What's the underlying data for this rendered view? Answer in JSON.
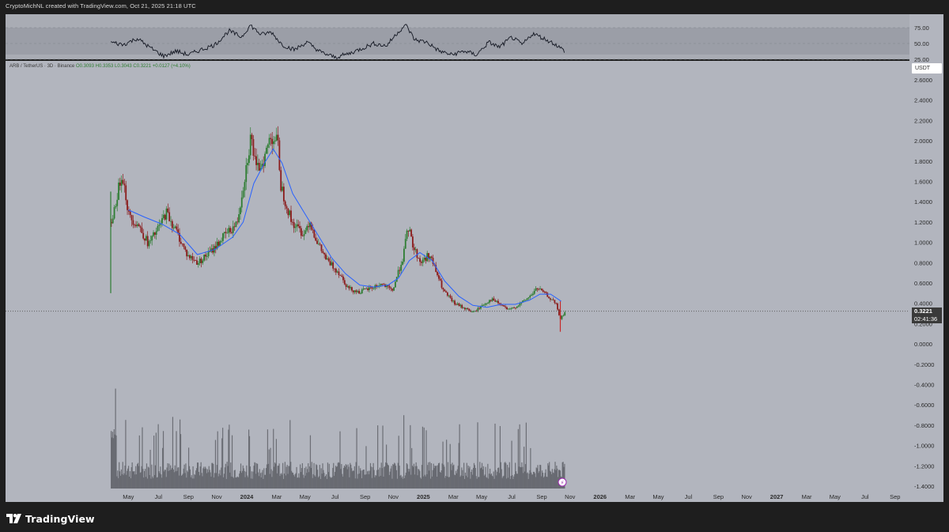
{
  "header": {
    "attribution": "CryptoMichNL created with TradingView.com, Oct 21, 2025 21:18 UTC"
  },
  "symbol": {
    "name": "ARB / TetherUS · 3D · Binance",
    "open": "O0.3093",
    "high": "H0.3353",
    "low": "L0.3043",
    "close": "C0.3221",
    "change": "+0.0127 (+4.10%)"
  },
  "currency_badge": "USDT",
  "last_price": {
    "value": "0.3221",
    "countdown": "02:41:36"
  },
  "brand": {
    "name": "TradingView"
  },
  "colors": {
    "pane_bg": "#b2b5be",
    "up_candle": "#2e7d32",
    "down_candle": "#8b1c1c",
    "ma_line": "#2962ff",
    "rsi_line": "#131722",
    "volume_bar": "#5f6168"
  },
  "chart_data": {
    "type": "candlestick",
    "y_axis": {
      "ticks": [
        "2.6000",
        "2.4000",
        "2.2000",
        "2.0000",
        "1.8000",
        "1.6000",
        "1.4000",
        "1.2000",
        "1.0000",
        "0.8000",
        "0.6000",
        "0.4000",
        "0.2000",
        "0.0000",
        "-0.2000",
        "-0.4000",
        "-0.6000",
        "-0.8000",
        "-1.0000",
        "-1.2000",
        "-1.4000"
      ],
      "ylim": [
        -1.4,
        2.6
      ]
    },
    "rsi_axis": {
      "ticks": [
        "75.00",
        "50.00",
        "25.00"
      ],
      "ylim": [
        25,
        80
      ]
    },
    "x_axis": {
      "ticks": [
        {
          "label": "May",
          "t": 2023.33,
          "bold": false
        },
        {
          "label": "Jul",
          "t": 2023.5,
          "bold": false
        },
        {
          "label": "Sep",
          "t": 2023.67,
          "bold": false
        },
        {
          "label": "Nov",
          "t": 2023.83,
          "bold": false
        },
        {
          "label": "2024",
          "t": 2024.0,
          "bold": true
        },
        {
          "label": "Mar",
          "t": 2024.17,
          "bold": false
        },
        {
          "label": "May",
          "t": 2024.33,
          "bold": false
        },
        {
          "label": "Jul",
          "t": 2024.5,
          "bold": false
        },
        {
          "label": "Sep",
          "t": 2024.67,
          "bold": false
        },
        {
          "label": "Nov",
          "t": 2024.83,
          "bold": false
        },
        {
          "label": "2025",
          "t": 2025.0,
          "bold": true
        },
        {
          "label": "Mar",
          "t": 2025.17,
          "bold": false
        },
        {
          "label": "May",
          "t": 2025.33,
          "bold": false
        },
        {
          "label": "Jul",
          "t": 2025.5,
          "bold": false
        },
        {
          "label": "Sep",
          "t": 2025.67,
          "bold": false
        },
        {
          "label": "Nov",
          "t": 2025.83,
          "bold": false
        },
        {
          "label": "2026",
          "t": 2026.0,
          "bold": true
        },
        {
          "label": "Mar",
          "t": 2026.17,
          "bold": false
        },
        {
          "label": "May",
          "t": 2026.33,
          "bold": false
        },
        {
          "label": "Jul",
          "t": 2026.5,
          "bold": false
        },
        {
          "label": "Sep",
          "t": 2026.67,
          "bold": false
        },
        {
          "label": "Nov",
          "t": 2026.83,
          "bold": false
        },
        {
          "label": "2027",
          "t": 2027.0,
          "bold": true
        },
        {
          "label": "Mar",
          "t": 2027.17,
          "bold": false
        },
        {
          "label": "May",
          "t": 2027.33,
          "bold": false
        },
        {
          "label": "Jul",
          "t": 2027.5,
          "bold": false
        },
        {
          "label": "Sep",
          "t": 2027.67,
          "bold": false
        }
      ],
      "xlim": [
        2023.0,
        2027.8
      ]
    },
    "price_path": [
      {
        "t": 2023.23,
        "v": 1.2
      },
      {
        "t": 2023.27,
        "v": 1.52
      },
      {
        "t": 2023.29,
        "v": 1.7
      },
      {
        "t": 2023.33,
        "v": 1.25
      },
      {
        "t": 2023.38,
        "v": 1.18
      },
      {
        "t": 2023.44,
        "v": 0.98
      },
      {
        "t": 2023.5,
        "v": 1.15
      },
      {
        "t": 2023.54,
        "v": 1.3
      },
      {
        "t": 2023.6,
        "v": 1.1
      },
      {
        "t": 2023.66,
        "v": 0.87
      },
      {
        "t": 2023.72,
        "v": 0.8
      },
      {
        "t": 2023.8,
        "v": 0.92
      },
      {
        "t": 2023.86,
        "v": 1.05
      },
      {
        "t": 2023.94,
        "v": 1.18
      },
      {
        "t": 2023.98,
        "v": 1.6
      },
      {
        "t": 2024.02,
        "v": 2.05
      },
      {
        "t": 2024.05,
        "v": 1.7
      },
      {
        "t": 2024.1,
        "v": 1.85
      },
      {
        "t": 2024.13,
        "v": 2.05
      },
      {
        "t": 2024.17,
        "v": 2.0
      },
      {
        "t": 2024.19,
        "v": 1.55
      },
      {
        "t": 2024.25,
        "v": 1.2
      },
      {
        "t": 2024.32,
        "v": 1.08
      },
      {
        "t": 2024.35,
        "v": 1.22
      },
      {
        "t": 2024.4,
        "v": 0.98
      },
      {
        "t": 2024.45,
        "v": 0.82
      },
      {
        "t": 2024.52,
        "v": 0.7
      },
      {
        "t": 2024.57,
        "v": 0.55
      },
      {
        "t": 2024.63,
        "v": 0.51
      },
      {
        "t": 2024.7,
        "v": 0.55
      },
      {
        "t": 2024.76,
        "v": 0.59
      },
      {
        "t": 2024.82,
        "v": 0.52
      },
      {
        "t": 2024.88,
        "v": 0.85
      },
      {
        "t": 2024.91,
        "v": 1.15
      },
      {
        "t": 2024.94,
        "v": 0.95
      },
      {
        "t": 2024.98,
        "v": 0.8
      },
      {
        "t": 2025.03,
        "v": 0.88
      },
      {
        "t": 2025.07,
        "v": 0.7
      },
      {
        "t": 2025.11,
        "v": 0.52
      },
      {
        "t": 2025.17,
        "v": 0.4
      },
      {
        "t": 2025.22,
        "v": 0.36
      },
      {
        "t": 2025.28,
        "v": 0.31
      },
      {
        "t": 2025.33,
        "v": 0.38
      },
      {
        "t": 2025.38,
        "v": 0.44
      },
      {
        "t": 2025.44,
        "v": 0.38
      },
      {
        "t": 2025.48,
        "v": 0.33
      },
      {
        "t": 2025.55,
        "v": 0.4
      },
      {
        "t": 2025.6,
        "v": 0.47
      },
      {
        "t": 2025.64,
        "v": 0.55
      },
      {
        "t": 2025.68,
        "v": 0.5
      },
      {
        "t": 2025.72,
        "v": 0.44
      },
      {
        "t": 2025.75,
        "v": 0.38
      },
      {
        "t": 2025.77,
        "v": 0.24
      },
      {
        "t": 2025.8,
        "v": 0.32
      }
    ],
    "ma_path": [
      {
        "t": 2023.33,
        "v": 1.32
      },
      {
        "t": 2023.42,
        "v": 1.25
      },
      {
        "t": 2023.52,
        "v": 1.18
      },
      {
        "t": 2023.62,
        "v": 1.08
      },
      {
        "t": 2023.72,
        "v": 0.88
      },
      {
        "t": 2023.82,
        "v": 0.93
      },
      {
        "t": 2023.92,
        "v": 1.05
      },
      {
        "t": 2023.98,
        "v": 1.2
      },
      {
        "t": 2024.04,
        "v": 1.58
      },
      {
        "t": 2024.1,
        "v": 1.78
      },
      {
        "t": 2024.15,
        "v": 1.92
      },
      {
        "t": 2024.2,
        "v": 1.78
      },
      {
        "t": 2024.26,
        "v": 1.48
      },
      {
        "t": 2024.33,
        "v": 1.28
      },
      {
        "t": 2024.4,
        "v": 1.08
      },
      {
        "t": 2024.48,
        "v": 0.85
      },
      {
        "t": 2024.56,
        "v": 0.69
      },
      {
        "t": 2024.64,
        "v": 0.58
      },
      {
        "t": 2024.72,
        "v": 0.56
      },
      {
        "t": 2024.8,
        "v": 0.58
      },
      {
        "t": 2024.86,
        "v": 0.65
      },
      {
        "t": 2024.92,
        "v": 0.82
      },
      {
        "t": 2024.98,
        "v": 0.9
      },
      {
        "t": 2025.05,
        "v": 0.82
      },
      {
        "t": 2025.12,
        "v": 0.62
      },
      {
        "t": 2025.2,
        "v": 0.47
      },
      {
        "t": 2025.28,
        "v": 0.38
      },
      {
        "t": 2025.36,
        "v": 0.36
      },
      {
        "t": 2025.44,
        "v": 0.39
      },
      {
        "t": 2025.52,
        "v": 0.39
      },
      {
        "t": 2025.6,
        "v": 0.43
      },
      {
        "t": 2025.66,
        "v": 0.49
      },
      {
        "t": 2025.72,
        "v": 0.49
      },
      {
        "t": 2025.78,
        "v": 0.42
      }
    ],
    "rsi_path": [
      {
        "t": 2023.23,
        "v": 52
      },
      {
        "t": 2023.3,
        "v": 48
      },
      {
        "t": 2023.38,
        "v": 58
      },
      {
        "t": 2023.46,
        "v": 42
      },
      {
        "t": 2023.53,
        "v": 30
      },
      {
        "t": 2023.6,
        "v": 38
      },
      {
        "t": 2023.67,
        "v": 32
      },
      {
        "t": 2023.74,
        "v": 40
      },
      {
        "t": 2023.82,
        "v": 48
      },
      {
        "t": 2023.9,
        "v": 70
      },
      {
        "t": 2023.97,
        "v": 60
      },
      {
        "t": 2024.02,
        "v": 79
      },
      {
        "t": 2024.08,
        "v": 64
      },
      {
        "t": 2024.14,
        "v": 68
      },
      {
        "t": 2024.2,
        "v": 48
      },
      {
        "t": 2024.27,
        "v": 40
      },
      {
        "t": 2024.34,
        "v": 52
      },
      {
        "t": 2024.42,
        "v": 36
      },
      {
        "t": 2024.5,
        "v": 28
      },
      {
        "t": 2024.58,
        "v": 34
      },
      {
        "t": 2024.65,
        "v": 42
      },
      {
        "t": 2024.72,
        "v": 50
      },
      {
        "t": 2024.79,
        "v": 46
      },
      {
        "t": 2024.85,
        "v": 66
      },
      {
        "t": 2024.9,
        "v": 80
      },
      {
        "t": 2024.95,
        "v": 56
      },
      {
        "t": 2025.02,
        "v": 52
      },
      {
        "t": 2025.09,
        "v": 38
      },
      {
        "t": 2025.16,
        "v": 32
      },
      {
        "t": 2025.23,
        "v": 38
      },
      {
        "t": 2025.3,
        "v": 32
      },
      {
        "t": 2025.37,
        "v": 52
      },
      {
        "t": 2025.43,
        "v": 44
      },
      {
        "t": 2025.5,
        "v": 60
      },
      {
        "t": 2025.56,
        "v": 48
      },
      {
        "t": 2025.62,
        "v": 66
      },
      {
        "t": 2025.68,
        "v": 58
      },
      {
        "t": 2025.74,
        "v": 50
      },
      {
        "t": 2025.8,
        "v": 38
      }
    ],
    "candle_range": {
      "start": 2023.23,
      "end": 2025.8,
      "step": 0.0082
    },
    "volume_range": {
      "start": 2023.23,
      "end": 2025.8
    },
    "last_price": 0.3221
  }
}
